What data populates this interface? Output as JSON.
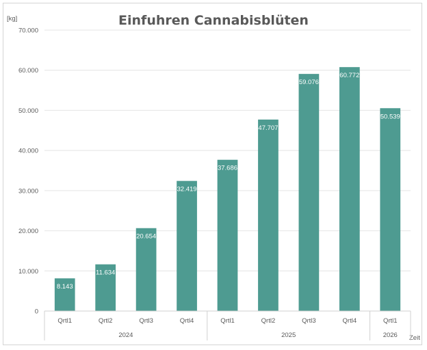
{
  "chart_data": {
    "type": "bar",
    "title": "Einfuhren Cannabisblüten",
    "ylabel": "[kg]",
    "xlabel": "Zeit",
    "ylim": [
      0,
      70000
    ],
    "yticks": [
      0,
      10000,
      20000,
      30000,
      40000,
      50000,
      60000,
      70000
    ],
    "ytick_labels": [
      "0",
      "10.000",
      "20.000",
      "30.000",
      "40.000",
      "50.000",
      "60.000",
      "70.000"
    ],
    "categories": [
      "Qrtl1",
      "Qrtl2",
      "Qrtl3",
      "Qrtl4",
      "Qrtl1",
      "Qrtl2",
      "Qrtl3",
      "Qrtl4",
      "Qrtl1"
    ],
    "groups": [
      {
        "label": "2024",
        "count": 4
      },
      {
        "label": "2025",
        "count": 4
      },
      {
        "label": "2026",
        "count": 1
      }
    ],
    "values": [
      8143,
      11634,
      20654,
      32419,
      37686,
      47707,
      59076,
      60772,
      50539
    ],
    "data_labels": [
      "8.143",
      "11.634",
      "20.654",
      "32.419",
      "37.686",
      "47.707",
      "59.076",
      "60.772",
      "50.539"
    ],
    "bar_color": "#4e9b91",
    "grid": true,
    "legend": "none"
  }
}
